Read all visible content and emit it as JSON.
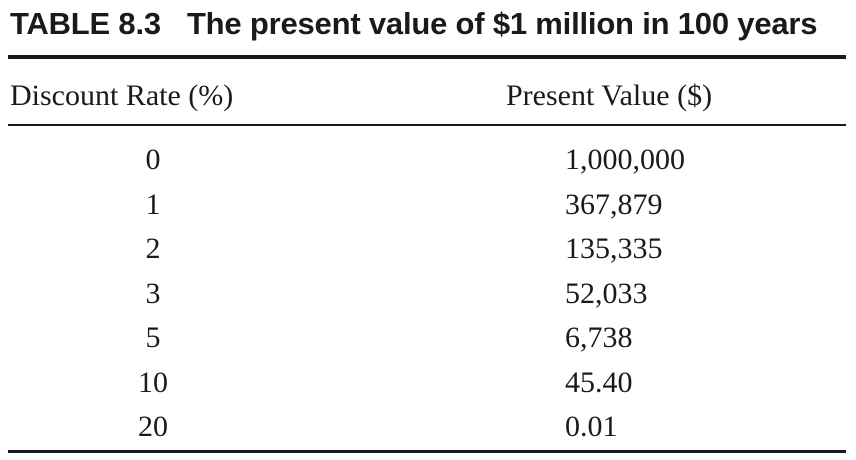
{
  "table": {
    "label": "TABLE 8.3",
    "title": "The present value of $1 million in 100 years",
    "headers": {
      "rate": "Discount Rate (%)",
      "value": "Present Value ($)"
    },
    "rows": [
      {
        "rate": "0",
        "value": "1,000,000"
      },
      {
        "rate": "1",
        "value": "367,879"
      },
      {
        "rate": "2",
        "value": "135,335"
      },
      {
        "rate": "3",
        "value": "52,033"
      },
      {
        "rate": "5",
        "value": "6,738"
      },
      {
        "rate": "10",
        "value": "45.40"
      },
      {
        "rate": "20",
        "value": "0.01"
      }
    ]
  }
}
